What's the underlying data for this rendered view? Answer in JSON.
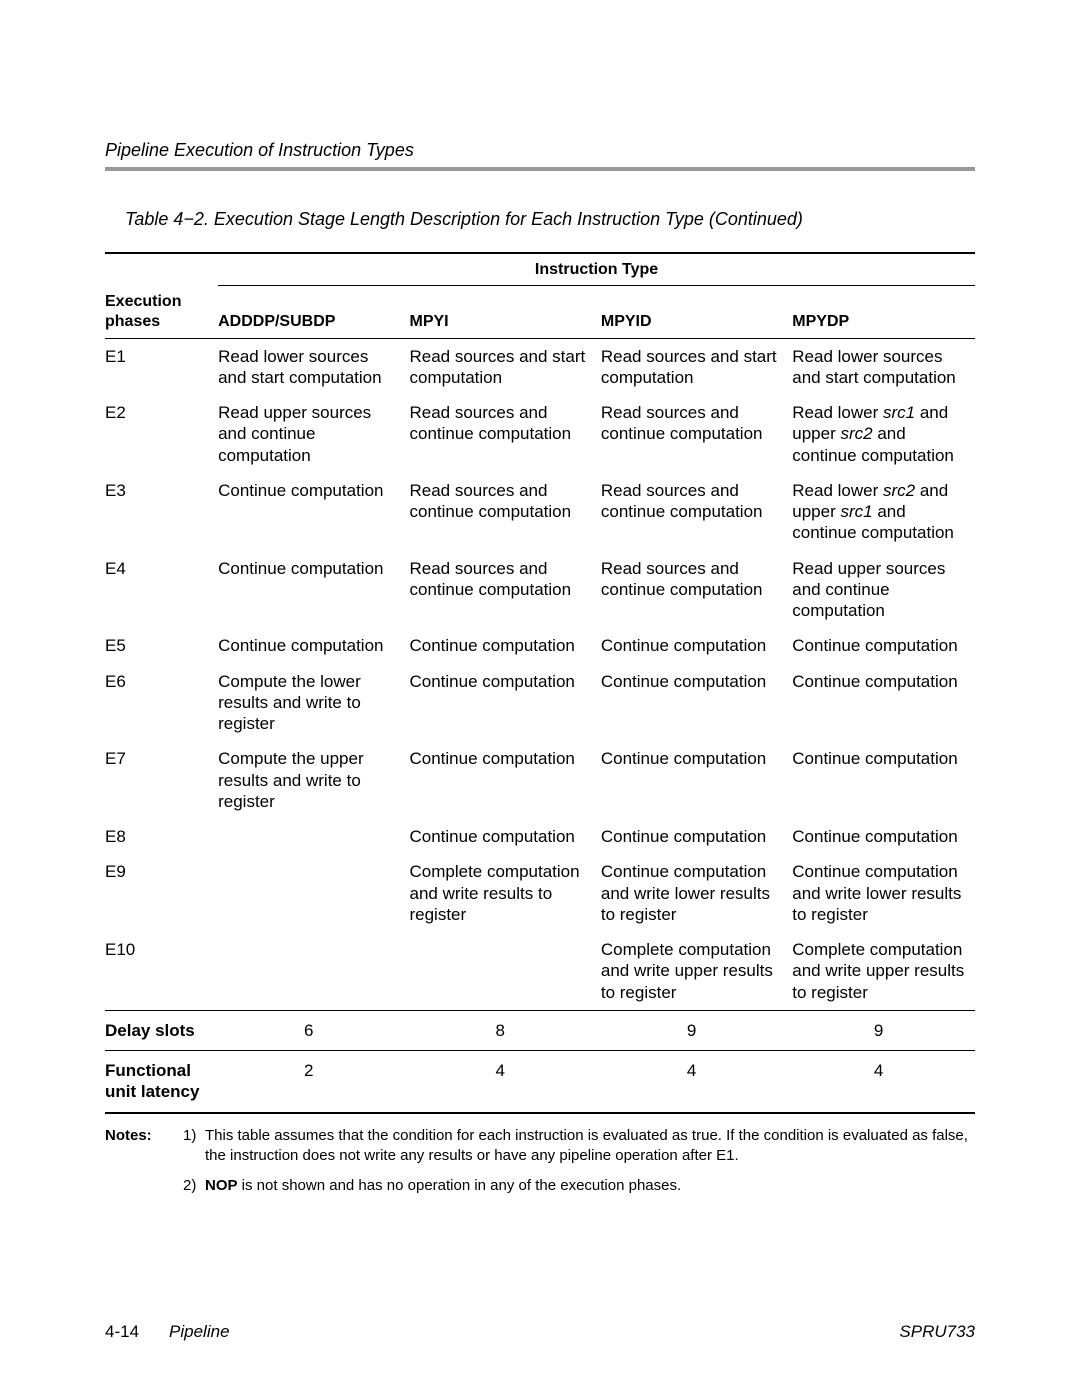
{
  "section_header": "Pipeline Execution of Instruction Types",
  "table": {
    "caption": "Table 4−2. Execution Stage Length Description for Each Instruction Type (Continued)",
    "group_header": "Instruction Type",
    "col_headers": {
      "phase": "Execution phases",
      "c1": "ADDDP/SUBDP",
      "c2": "MPYI",
      "c3": "MPYID",
      "c4": "MPYDP"
    },
    "col_widths": [
      "13%",
      "22%",
      "22%",
      "22%",
      "21%"
    ],
    "rows": [
      {
        "phase": "E1",
        "c1": "Read lower sources and start computation",
        "c2": "Read sources and start computation",
        "c3": "Read sources and start computation",
        "c4": "Read lower sources and start computation"
      },
      {
        "phase": "E2",
        "c1": "Read upper sources and continue computation",
        "c2": "Read sources and continue computation",
        "c3": "Read sources and continue computation",
        "c4_html": "Read lower <span class='i'>src1</span> and upper <span class='i'>src2</span> and continue computation"
      },
      {
        "phase": "E3",
        "c1": "Continue computation",
        "c2": "Read sources and continue computation",
        "c3": "Read sources and continue computation",
        "c4_html": "Read lower <span class='i'>src2</span> and upper <span class='i'>src1</span> and continue computation"
      },
      {
        "phase": "E4",
        "c1": "Continue computation",
        "c2": "Read sources and continue computation",
        "c3": "Read sources and continue computation",
        "c4": "Read upper sources and continue computation"
      },
      {
        "phase": "E5",
        "c1": "Continue computation",
        "c2": "Continue computation",
        "c3": "Continue computation",
        "c4": "Continue computation"
      },
      {
        "phase": "E6",
        "c1": "Compute the lower results and write to register",
        "c2": "Continue computation",
        "c3": "Continue computation",
        "c4": "Continue computation"
      },
      {
        "phase": "E7",
        "c1": "Compute the upper results and write to register",
        "c2": "Continue computation",
        "c3": "Continue computation",
        "c4": "Continue computation"
      },
      {
        "phase": "E8",
        "c1": "",
        "c2": "Continue computation",
        "c3": "Continue computation",
        "c4": "Continue computation"
      },
      {
        "phase": "E9",
        "c1": "",
        "c2": "Complete computa­tion and write results to register",
        "c3": "Continue computation and write lower results to register",
        "c4": "Continue computation and write lower results to register"
      },
      {
        "phase": "E10",
        "c1": "",
        "c2": "",
        "c3": "Complete computa­tion and write upper results to register",
        "c4": "Complete computa­tion and write upper results to register"
      }
    ],
    "summary": [
      {
        "label": "Delay slots",
        "c1": "6",
        "c2": "8",
        "c3": "9",
        "c4": "9"
      },
      {
        "label": "Functional unit latency",
        "c1": "2",
        "c2": "4",
        "c3": "4",
        "c4": "4"
      }
    ]
  },
  "notes": {
    "label": "Notes:",
    "items": [
      {
        "num": "1)",
        "text": "This table assumes that the condition for each instruction is evaluated as true. If the condition is evaluated as false, the instruction does not write any results or have any pipeline operation after E1."
      },
      {
        "num": "2)",
        "html": "<span class='b'>NOP</span> is not shown and has no operation in any of the execution phases."
      }
    ]
  },
  "footer": {
    "page_num": "4-14",
    "chapter": "Pipeline",
    "doc_id": "SPRU733"
  }
}
